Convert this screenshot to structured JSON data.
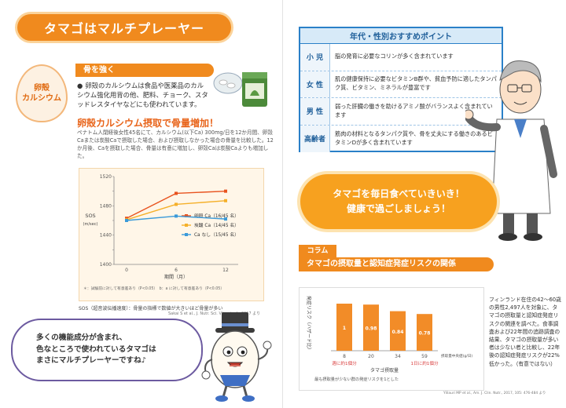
{
  "left": {
    "banner_title": "タマゴはマルチプレーヤー",
    "badge": [
      "卵殻",
      "カルシウム"
    ],
    "section_title": "骨を強く",
    "bullet": "卵殻のカルシウムは食品や医薬品のカルシウム強化用背の他、肥料、チョーク、スタッドレスタイヤなどにも使われています。",
    "headline": "卵殻カルシウム摂取で骨量増加！",
    "study_text": "ペナトム人閉経後女性45名にて、カルシウム(以下Ca) 300mg/日を12か月間、卵殻Caまたは炭酸Caで摂取した場合、および摂取しなかった場合の骨量を比較した。12か月後、Caを摂取した場合、骨量は有意に増加し、卵殻Caは炭酸Caよりも増加した。",
    "chart_footnote": "＊：試験前に対して有意差あり（P<0.05）　b：a に対して有意差あり（P<0.05）",
    "chart_caption": "SOS（超音波伝播速度）：骨量の指標で数値が大きいほど骨量が多い",
    "chart_source": "Sakai S et al., J. Nutr. Sci. Vitaminol., 2017 より",
    "speech": [
      "多くの機能成分が含まれ、",
      "色なところで使われているタマゴは",
      "まさにマルチプレーヤーですね♪"
    ]
  },
  "right": {
    "rec_title": "年代・性別おすすめポイント",
    "rows": [
      {
        "label": "小 児",
        "text": "脳の発育に必要なコリンが多く含まれています"
      },
      {
        "label": "女 性",
        "text": "肌の健康保持に必要なビタミンB群や、貧血予防に適したタンパク質、ビタミン、ミネラルが豊富です"
      },
      {
        "label": "男 性",
        "text": "弱った肝臓の働きを助けるアミノ酸がバランスよく含まれています"
      },
      {
        "label": "高齢者",
        "text": "筋肉の材料となるタンパク質や、骨を丈夫にする働きのあるビタミンDが多く含まれています"
      }
    ],
    "message": [
      "タマゴを毎日食べていきいき！",
      "健康で過ごしましょう！"
    ],
    "column_tag": "コラム",
    "column_title": "タマゴの摂取量と認知症発症リスクの関係",
    "risk_ylabel": "発症リスク（ハザード比）",
    "risk_xlabel": "タマゴ摂取量",
    "risk_unit": "摂取量中央値(g/日)",
    "risk_left_note": "週に約1個分",
    "risk_right_note": "1日に約1個分",
    "risk_note": "最も摂取量が少ない群の発症リスクを1とした",
    "finland_text": "フィンランド在住の42〜60歳の男性2,497人を対象に、タマゴの摂取量と認知症発症リスクの関連を調べた。食事調査および22年間の追跡調査の結果、タマゴの摂取量が多い者は少ない者と比較し、22年後の認知症発症リスクが22%低かった。（有意ではない）",
    "finland_source": "Ylilauri MP et al., Am. J. Clin. Nutr., 2017, 105: 476-484 より"
  },
  "chart_data": [
    {
      "type": "line",
      "xlabel": "期間（月）",
      "ylabel": "SOS (m/sec)",
      "x": [
        0,
        6,
        12
      ],
      "ylim": [
        1400,
        1520
      ],
      "yticks": [
        1400,
        1420,
        1440,
        1460,
        1480,
        1500,
        1520
      ],
      "series": [
        {
          "name": "卵殻 Ca（16/45 名）",
          "color": "#e8531f",
          "values": [
            1463,
            1497,
            1500
          ]
        },
        {
          "name": "炭酸 Ca（14/45 名）",
          "color": "#f5b02a",
          "values": [
            1461,
            1482,
            1487
          ]
        },
        {
          "name": "Ca なし（15/45 名）",
          "color": "#3a9ad9",
          "values": [
            1460,
            1466,
            1462
          ]
        }
      ]
    },
    {
      "type": "bar",
      "categories": [
        "8",
        "20",
        "34",
        "59"
      ],
      "values": [
        1,
        0.98,
        0.84,
        0.78
      ],
      "ylim": [
        0,
        1.2
      ],
      "color": "#f28c28"
    }
  ]
}
